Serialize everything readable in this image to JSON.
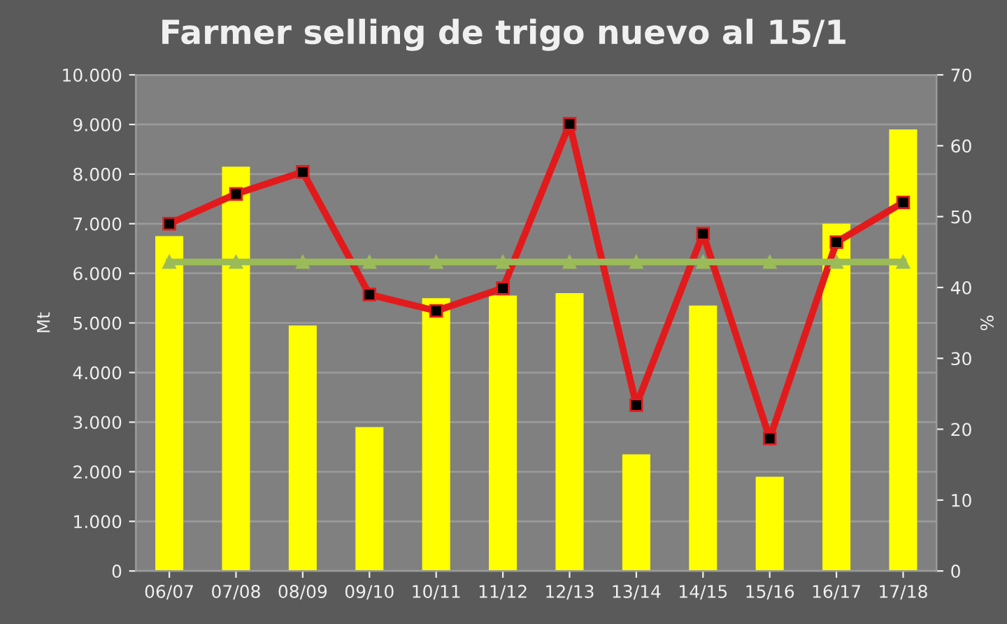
{
  "chart_data": {
    "type": "bar",
    "title": "Farmer selling de trigo nuevo al 15/1",
    "ylabel": "Mt",
    "y2label": "%",
    "categories": [
      "06/07",
      "07/08",
      "08/09",
      "09/10",
      "10/11",
      "11/12",
      "12/13",
      "13/14",
      "14/15",
      "15/16",
      "16/17",
      "17/18"
    ],
    "series": [
      {
        "color": "#ffff00",
        "values": [
          6750,
          8150,
          4950,
          2900,
          5500,
          5550,
          5600,
          2350,
          5350,
          1900,
          7000,
          8900
        ]
      },
      {
        "type": "line",
        "axis": "y2",
        "color": "#e31a1c",
        "marker": "square",
        "values": [
          49,
          53.2,
          56.3,
          39,
          36.7,
          39.9,
          63.1,
          23.4,
          47.6,
          18.7,
          46.4,
          52
        ]
      },
      {
        "type": "line",
        "axis": "y2",
        "color": "#9bbb59",
        "marker": "triangle",
        "values": [
          43.6,
          43.6,
          43.6,
          43.6,
          43.6,
          43.6,
          43.6,
          43.6,
          43.6,
          43.6,
          43.6,
          43.6
        ]
      }
    ],
    "ylim": [
      0,
      10000
    ],
    "yticks": [
      {
        "value": 0,
        "label": "0"
      },
      {
        "value": 1000,
        "label": "1.000"
      },
      {
        "value": 2000,
        "label": "2.000"
      },
      {
        "value": 3000,
        "label": "3.000"
      },
      {
        "value": 4000,
        "label": "4.000"
      },
      {
        "value": 5000,
        "label": "5.000"
      },
      {
        "value": 6000,
        "label": "6.000"
      },
      {
        "value": 7000,
        "label": "7.000"
      },
      {
        "value": 8000,
        "label": "8.000"
      },
      {
        "value": 9000,
        "label": "9.000"
      },
      {
        "value": 10000,
        "label": "10.000"
      }
    ],
    "y2lim": [
      0,
      70
    ],
    "y2ticks": [
      0,
      10,
      20,
      30,
      40,
      50,
      60,
      70
    ],
    "grid": "y",
    "legend": false
  }
}
